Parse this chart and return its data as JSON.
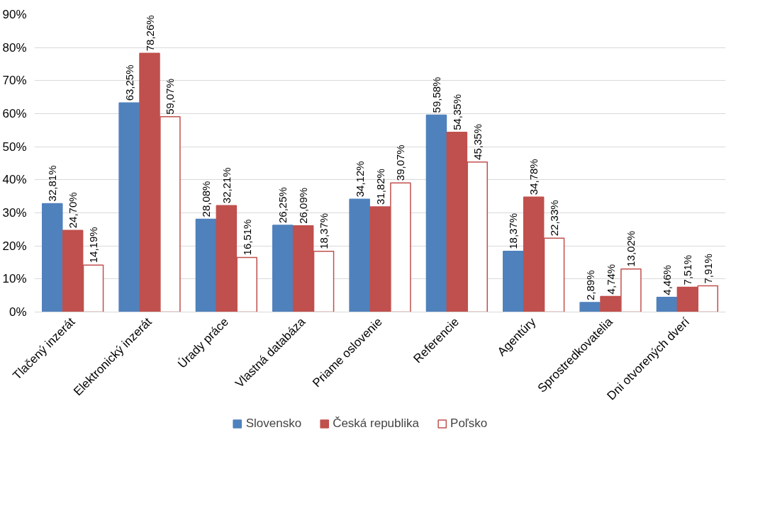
{
  "chart_data": {
    "type": "bar",
    "categories": [
      "Tlačený inzerát",
      "Elektronický inzerát",
      "Úrady práce",
      "Vlastná databáza",
      "Priame oslovenie",
      "Referencie",
      "Agentúry",
      "Sprostredkovatelia",
      "Dni otvorených dverí"
    ],
    "series": [
      {
        "name": "Slovensko",
        "color": "#4f81bd",
        "values": [
          32.81,
          63.25,
          28.08,
          26.25,
          34.12,
          59.58,
          18.37,
          2.89,
          4.46
        ],
        "value_labels": [
          "32,81%",
          "63,25%",
          "28,08%",
          "26,25%",
          "34,12%",
          "59,58%",
          "18,37%",
          "2,89%",
          "4,46%"
        ]
      },
      {
        "name": "Česká republika",
        "color": "#c0504d",
        "values": [
          24.7,
          78.26,
          32.21,
          26.09,
          31.82,
          54.35,
          34.78,
          4.74,
          7.51
        ],
        "value_labels": [
          "24,70%",
          "78,26%",
          "32,21%",
          "26,09%",
          "31,82%",
          "54,35%",
          "34,78%",
          "4,74%",
          "7,51%"
        ]
      },
      {
        "name": "Poľsko",
        "color": "#ffffff",
        "values": [
          14.19,
          59.07,
          16.51,
          18.37,
          39.07,
          45.35,
          22.33,
          13.02,
          7.91
        ],
        "value_labels": [
          "14,19%",
          "59,07%",
          "16,51%",
          "18,37%",
          "39,07%",
          "45,35%",
          "22,33%",
          "13,02%",
          "7,91%"
        ]
      }
    ],
    "ylim": [
      0,
      90
    ],
    "yticks": [
      {
        "value": 0,
        "label": "0%"
      },
      {
        "value": 10,
        "label": "10%"
      },
      {
        "value": 20,
        "label": "20%"
      },
      {
        "value": 30,
        "label": "30%"
      },
      {
        "value": 40,
        "label": "40%"
      },
      {
        "value": 50,
        "label": "50%"
      },
      {
        "value": 60,
        "label": "60%"
      },
      {
        "value": 70,
        "label": "70%"
      },
      {
        "value": 80,
        "label": "80%"
      },
      {
        "value": 90,
        "label": "90%"
      }
    ],
    "grid": "y",
    "legend": "bottom"
  }
}
